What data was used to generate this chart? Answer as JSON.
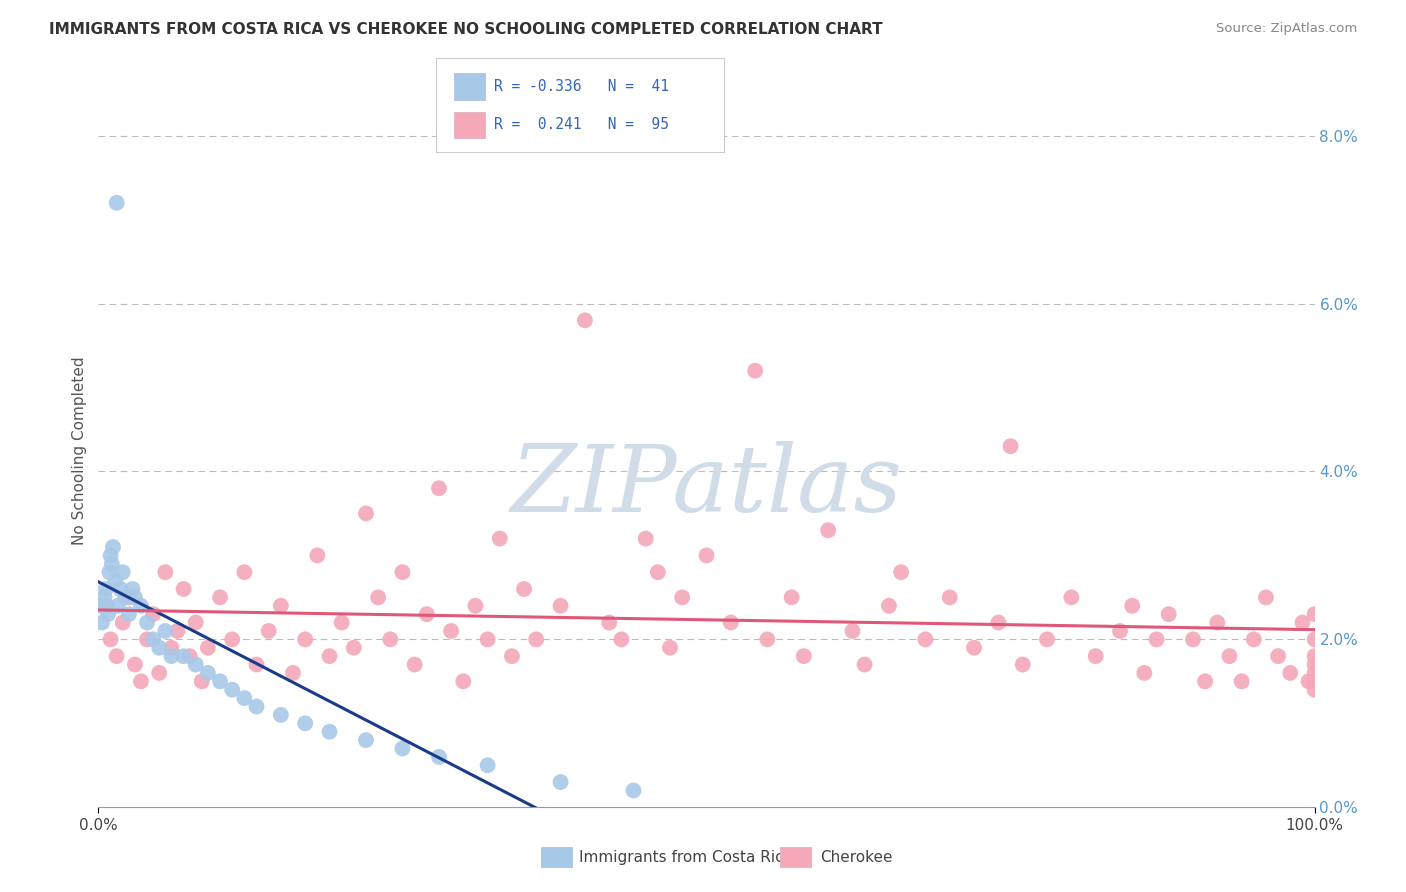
{
  "title": "IMMIGRANTS FROM COSTA RICA VS CHEROKEE NO SCHOOLING COMPLETED CORRELATION CHART",
  "source": "Source: ZipAtlas.com",
  "ylabel": "No Schooling Completed",
  "legend_blue_label": "Immigrants from Costa Rica",
  "legend_pink_label": "Cherokee",
  "R_blue": -0.336,
  "N_blue": 41,
  "R_pink": 0.241,
  "N_pink": 95,
  "blue_color": "#a8c8e8",
  "pink_color": "#f4a8b8",
  "blue_line_color": "#1a3a8a",
  "pink_line_color": "#e05878",
  "background_color": "#ffffff",
  "watermark_color": "#d0dde8",
  "grid_color": "#bbbbbb",
  "right_axis_color": "#5599cc",
  "xmin": 0.0,
  "xmax": 100.0,
  "ymin": 0.0,
  "ymax": 8.5,
  "ytick_vals": [
    0.0,
    2.0,
    4.0,
    6.0,
    8.0
  ],
  "ytick_labels": [
    "0.0%",
    "2.0%",
    "4.0%",
    "6.0%",
    "8.0%"
  ],
  "blue_x": [
    0.3,
    0.5,
    0.6,
    0.7,
    0.8,
    0.9,
    1.0,
    1.1,
    1.2,
    1.4,
    1.5,
    1.6,
    1.8,
    2.0,
    2.2,
    2.5,
    2.8,
    3.0,
    3.5,
    4.0,
    4.5,
    5.0,
    5.5,
    6.0,
    7.0,
    8.0,
    9.0,
    10.0,
    11.0,
    12.0,
    13.0,
    15.0,
    17.0,
    19.0,
    22.0,
    25.0,
    28.0,
    32.0,
    38.0,
    44.0,
    0.15
  ],
  "blue_y": [
    2.2,
    2.5,
    2.6,
    2.4,
    2.3,
    2.8,
    3.0,
    2.9,
    3.1,
    2.7,
    7.2,
    2.4,
    2.6,
    2.8,
    2.5,
    2.3,
    2.6,
    2.5,
    2.4,
    2.2,
    2.0,
    1.9,
    2.1,
    1.8,
    1.8,
    1.7,
    1.6,
    1.5,
    1.4,
    1.3,
    1.2,
    1.1,
    1.0,
    0.9,
    0.8,
    0.7,
    0.6,
    0.5,
    0.3,
    0.2,
    2.4
  ],
  "pink_x": [
    1.0,
    1.5,
    2.0,
    2.5,
    3.0,
    3.5,
    4.0,
    4.5,
    5.0,
    5.5,
    6.0,
    6.5,
    7.0,
    7.5,
    8.0,
    8.5,
    9.0,
    10.0,
    11.0,
    12.0,
    13.0,
    14.0,
    15.0,
    16.0,
    17.0,
    18.0,
    19.0,
    20.0,
    21.0,
    22.0,
    23.0,
    24.0,
    25.0,
    26.0,
    27.0,
    28.0,
    29.0,
    30.0,
    31.0,
    32.0,
    33.0,
    34.0,
    35.0,
    36.0,
    38.0,
    40.0,
    42.0,
    43.0,
    45.0,
    46.0,
    47.0,
    48.0,
    50.0,
    52.0,
    54.0,
    55.0,
    57.0,
    58.0,
    60.0,
    62.0,
    63.0,
    65.0,
    66.0,
    68.0,
    70.0,
    72.0,
    74.0,
    75.0,
    76.0,
    78.0,
    80.0,
    82.0,
    84.0,
    85.0,
    86.0,
    87.0,
    88.0,
    90.0,
    91.0,
    92.0,
    93.0,
    94.0,
    95.0,
    96.0,
    97.0,
    98.0,
    99.0,
    99.5,
    100.0,
    100.0,
    100.0,
    100.0,
    100.0,
    100.0,
    100.0
  ],
  "pink_y": [
    2.0,
    1.8,
    2.2,
    2.5,
    1.7,
    1.5,
    2.0,
    2.3,
    1.6,
    2.8,
    1.9,
    2.1,
    2.6,
    1.8,
    2.2,
    1.5,
    1.9,
    2.5,
    2.0,
    2.8,
    1.7,
    2.1,
    2.4,
    1.6,
    2.0,
    3.0,
    1.8,
    2.2,
    1.9,
    3.5,
    2.5,
    2.0,
    2.8,
    1.7,
    2.3,
    3.8,
    2.1,
    1.5,
    2.4,
    2.0,
    3.2,
    1.8,
    2.6,
    2.0,
    2.4,
    5.8,
    2.2,
    2.0,
    3.2,
    2.8,
    1.9,
    2.5,
    3.0,
    2.2,
    5.2,
    2.0,
    2.5,
    1.8,
    3.3,
    2.1,
    1.7,
    2.4,
    2.8,
    2.0,
    2.5,
    1.9,
    2.2,
    4.3,
    1.7,
    2.0,
    2.5,
    1.8,
    2.1,
    2.4,
    1.6,
    2.0,
    2.3,
    2.0,
    1.5,
    2.2,
    1.8,
    1.5,
    2.0,
    2.5,
    1.8,
    1.6,
    2.2,
    1.5,
    1.4,
    1.8,
    1.6,
    2.0,
    2.3,
    1.7,
    1.5
  ]
}
